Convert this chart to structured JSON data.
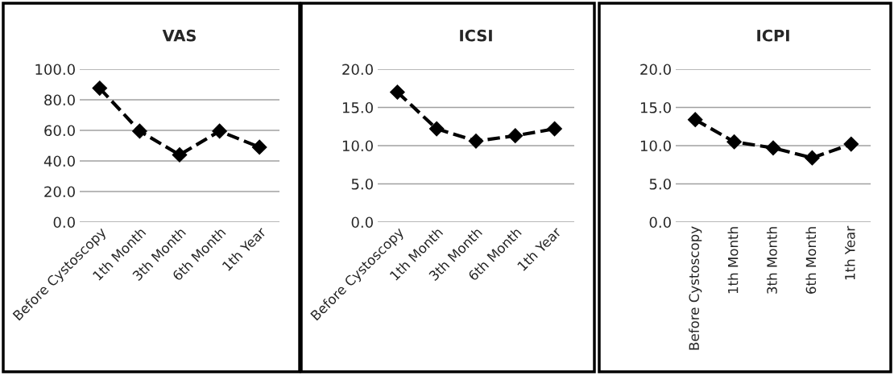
{
  "chart_data": [
    {
      "type": "line",
      "title": "VAS",
      "categories": [
        "Before Cystoscopy",
        "1th Month",
        "3th Month",
        "6th Month",
        "1th Year"
      ],
      "series": [
        {
          "color": "#000000",
          "values": [
            87.6,
            59.5,
            44.0,
            59.5,
            49.0
          ]
        }
      ],
      "ylim": [
        0,
        100
      ],
      "yticks": [
        {
          "value": 0,
          "label": "0.0"
        },
        {
          "value": 20,
          "label": "20.0"
        },
        {
          "value": 40,
          "label": "40.0"
        },
        {
          "value": 60,
          "label": "60.0"
        },
        {
          "value": 80,
          "label": "80.0"
        },
        {
          "value": 100,
          "label": "100.0"
        }
      ],
      "grid": "y",
      "marker": "diamond",
      "line_style": "dashed"
    },
    {
      "type": "line",
      "title": "ICSI",
      "categories": [
        "Before Cystoscopy",
        "1th Month",
        "3th Month",
        "6th Month",
        "1th Year"
      ],
      "series": [
        {
          "color": "#000000",
          "values": [
            17.0,
            12.2,
            10.6,
            11.3,
            12.2
          ]
        }
      ],
      "ylim": [
        0,
        20
      ],
      "yticks": [
        {
          "value": 0,
          "label": "0.0"
        },
        {
          "value": 5,
          "label": "5.0"
        },
        {
          "value": 10,
          "label": "10.0"
        },
        {
          "value": 15,
          "label": "15.0"
        },
        {
          "value": 20,
          "label": "20.0"
        }
      ],
      "grid": "y",
      "marker": "diamond",
      "line_style": "dashed"
    },
    {
      "type": "line",
      "title": "ICPI",
      "categories": [
        "Before Cystoscopy",
        "1th Month",
        "3th Month",
        "6th Month",
        "1th Year"
      ],
      "series": [
        {
          "color": "#000000",
          "values": [
            13.4,
            10.5,
            9.7,
            8.4,
            10.2
          ]
        }
      ],
      "ylim": [
        0,
        20
      ],
      "yticks": [
        {
          "value": 0,
          "label": "0.0"
        },
        {
          "value": 5,
          "label": "5.0"
        },
        {
          "value": 10,
          "label": "10.0"
        },
        {
          "value": 15,
          "label": "15.0"
        },
        {
          "value": 20,
          "label": "20.0"
        }
      ],
      "grid": "y",
      "marker": "diamond",
      "line_style": "dashed"
    }
  ]
}
